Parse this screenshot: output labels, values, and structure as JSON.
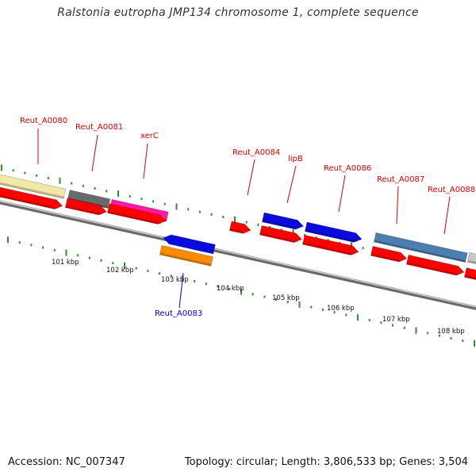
{
  "header": {
    "title": "Ralstonia eutropha JMP134 chromosome 1, complete sequence"
  },
  "footer": {
    "accession": "Accession: NC_007347",
    "summary": "Topology: circular; Length: 3,806,533 bp; Genes: 3,504"
  },
  "colors": {
    "backbone": "#8a8a8a",
    "tick": "#2f8f2f",
    "cds_red": "#ff0000",
    "label_red": "#d40000",
    "label_blue": "#0000c8"
  },
  "genes": [
    {
      "id": "Reut_A0080",
      "color_name": "khaki",
      "color": "#f0eaa6"
    },
    {
      "id": "Reut_A0081",
      "color_name": "dark-gray",
      "color": "#6a6a6a"
    },
    {
      "id": "xerC",
      "color_name": "magenta",
      "color": "#ff1aa3"
    },
    {
      "id": "Reut_A0083",
      "color_name": "blue",
      "color": "#0a0adc"
    },
    {
      "id": "Reut_A0084",
      "color_name": "red",
      "color": "#ff0000"
    },
    {
      "id": "lipB",
      "color_name": "blue",
      "color": "#0a0adc"
    },
    {
      "id": "Reut_A0086",
      "color_name": "blue",
      "color": "#0a0adc"
    },
    {
      "id": "Reut_A0087",
      "color_name": "steel-blue",
      "color": "#4d7eb0"
    },
    {
      "id": "Reut_A0088",
      "color_name": "light-gray",
      "color": "#c8c8c8"
    }
  ],
  "kbp_labels": [
    "101 kbp",
    "102 kbp",
    "103 kbp",
    "104 kbp",
    "105 kbp",
    "106 kbp",
    "107 kbp",
    "108 kbp"
  ]
}
